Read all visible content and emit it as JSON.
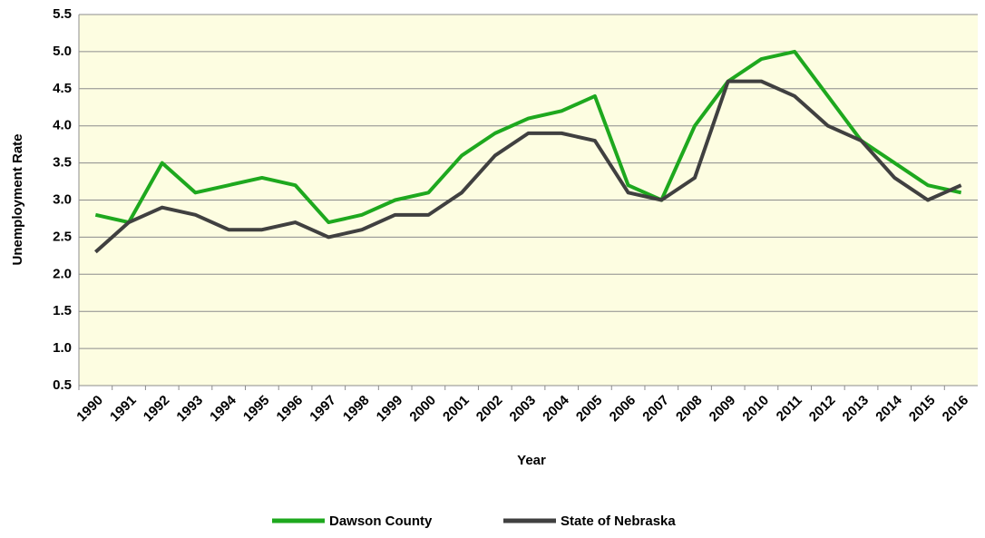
{
  "chart_data": {
    "type": "line",
    "x_label": "Year",
    "y_label": "Unemployment Rate",
    "categories": [
      "1990",
      "1991",
      "1992",
      "1993",
      "1994",
      "1995",
      "1996",
      "1997",
      "1998",
      "1999",
      "2000",
      "2001",
      "2002",
      "2003",
      "2004",
      "2005",
      "2006",
      "2007",
      "2008",
      "2009",
      "2010",
      "2011",
      "2012",
      "2013",
      "2014",
      "2015",
      "2016"
    ],
    "series": [
      {
        "name": "Dawson County",
        "color": "#1ea81e",
        "values": [
          2.8,
          2.7,
          3.5,
          3.1,
          3.2,
          3.3,
          3.2,
          2.7,
          2.8,
          3.0,
          3.1,
          3.6,
          3.9,
          4.1,
          4.2,
          4.4,
          3.2,
          3.0,
          4.0,
          4.6,
          4.9,
          5.0,
          4.4,
          3.8,
          3.5,
          3.2,
          3.1
        ]
      },
      {
        "name": "State of Nebraska",
        "color": "#404040",
        "values": [
          2.3,
          2.7,
          2.9,
          2.8,
          2.6,
          2.6,
          2.7,
          2.5,
          2.6,
          2.8,
          2.8,
          3.1,
          3.6,
          3.9,
          3.9,
          3.8,
          3.1,
          3.0,
          3.3,
          4.6,
          4.6,
          4.4,
          4.0,
          3.8,
          3.3,
          3.0,
          3.2
        ]
      }
    ],
    "ylim": [
      0.5,
      5.5
    ],
    "yticks": [
      0.5,
      {
        "value": 1,
        "label": "1.0"
      },
      1.5,
      {
        "value": 2,
        "label": "2.0"
      },
      2.5,
      {
        "value": 3,
        "label": "3.0"
      },
      3.5,
      {
        "value": 4,
        "label": "4.0"
      },
      4.5,
      {
        "value": 5,
        "label": "5.0"
      },
      5.5
    ],
    "grid": true,
    "legend": "bottom"
  }
}
